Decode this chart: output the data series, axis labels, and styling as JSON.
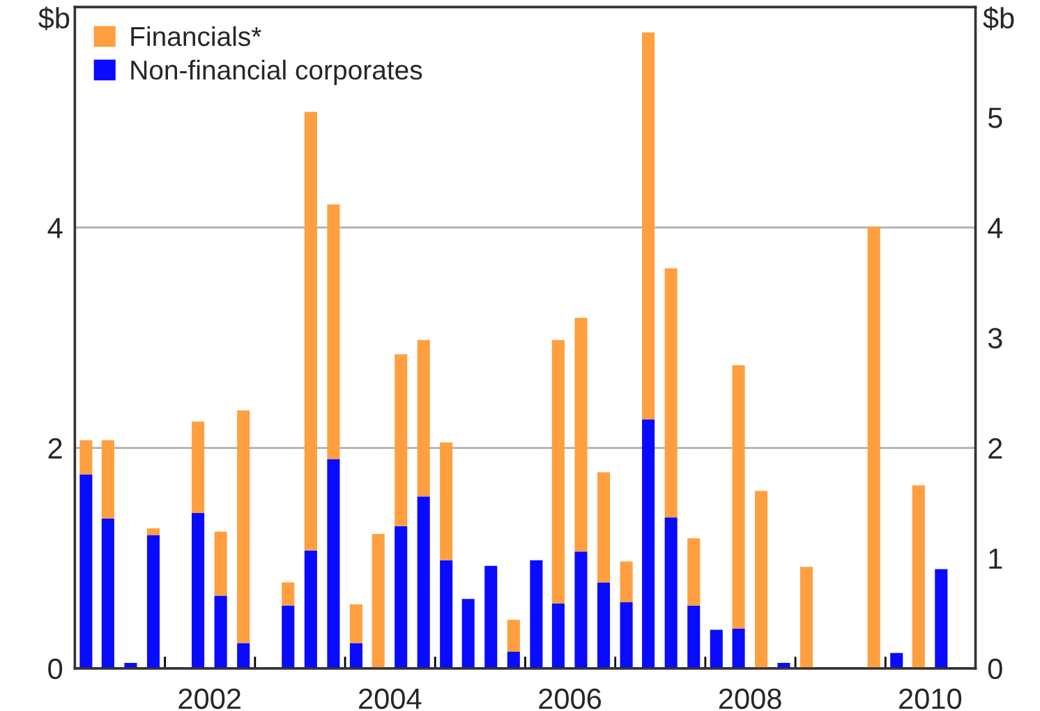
{
  "chart_data": {
    "type": "bar",
    "stacked": true,
    "ylabel": "$b",
    "y2label": "$b",
    "x": [
      "2001-02-15",
      "2001-05-15",
      "2001-08-15",
      "2001-11-15",
      "2002-02-15",
      "2002-05-15",
      "2002-08-15",
      "2002-11-15",
      "2003-02-15",
      "2003-05-15",
      "2003-08-15",
      "2003-11-15",
      "2004-02-15",
      "2004-05-15",
      "2004-08-15",
      "2004-11-15",
      "2005-02-15",
      "2005-05-15",
      "2005-08-15",
      "2005-11-15",
      "2006-02-15",
      "2006-05-15",
      "2006-08-15",
      "2006-11-15",
      "2007-02-15",
      "2007-05-15",
      "2007-08-15",
      "2007-11-15",
      "2008-02-15",
      "2008-05-15",
      "2008-08-15",
      "2008-11-15",
      "2009-02-15",
      "2009-05-15",
      "2009-08-15",
      "2009-11-15",
      "2010-02-15",
      "2010-05-15",
      "2010-08-15"
    ],
    "series": [
      {
        "name": "Non-financial corporates",
        "color": "#0a0aff",
        "values": [
          1.76,
          1.36,
          0.05,
          1.21,
          null,
          1.41,
          0.66,
          0.23,
          null,
          0.57,
          1.07,
          1.9,
          0.23,
          0,
          1.29,
          1.56,
          0.98,
          0.63,
          0.93,
          0.15,
          0.98,
          0.59,
          1.06,
          0.78,
          0.6,
          2.26,
          1.37,
          0.57,
          0.35,
          0.36,
          0,
          0.05,
          0,
          0,
          0,
          0,
          0.14,
          0,
          0.9
        ]
      },
      {
        "name": "Financials*",
        "color": "#ff9f40",
        "values": [
          0.31,
          0.71,
          0,
          0.06,
          0,
          0.83,
          0.58,
          2.11,
          0,
          0.21,
          3.98,
          2.31,
          0.35,
          1.22,
          1.56,
          1.42,
          1.07,
          0,
          0,
          0.29,
          0,
          2.39,
          2.12,
          1.0,
          0.37,
          3.51,
          2.26,
          0.61,
          0,
          2.39,
          1.61,
          0,
          0.92,
          0,
          0,
          4.01,
          0,
          1.66,
          0
        ]
      }
    ],
    "xlim": [
      "2001-01-01",
      "2011-01-01"
    ],
    "xticks": [
      {
        "value": "2002-01-01",
        "label": null
      },
      {
        "value": "2002-07-01",
        "label": "2002"
      },
      {
        "value": "2003-01-01",
        "label": null
      },
      {
        "value": "2004-01-01",
        "label": null
      },
      {
        "value": "2004-07-01",
        "label": "2004"
      },
      {
        "value": "2005-01-01",
        "label": null
      },
      {
        "value": "2006-01-01",
        "label": null
      },
      {
        "value": "2006-07-01",
        "label": "2006"
      },
      {
        "value": "2007-01-01",
        "label": null
      },
      {
        "value": "2008-01-01",
        "label": null
      },
      {
        "value": "2008-07-01",
        "label": "2008"
      },
      {
        "value": "2009-01-01",
        "label": null
      },
      {
        "value": "2010-01-01",
        "label": null
      },
      {
        "value": "2010-07-01",
        "label": "2010"
      }
    ],
    "ylim": [
      0,
      6
    ],
    "yticks": [
      0,
      2,
      4
    ],
    "y2lim": [
      0,
      6
    ],
    "y2ticks": [
      0,
      1,
      2,
      3,
      4,
      5
    ],
    "grid": "y",
    "legend": "top left"
  }
}
